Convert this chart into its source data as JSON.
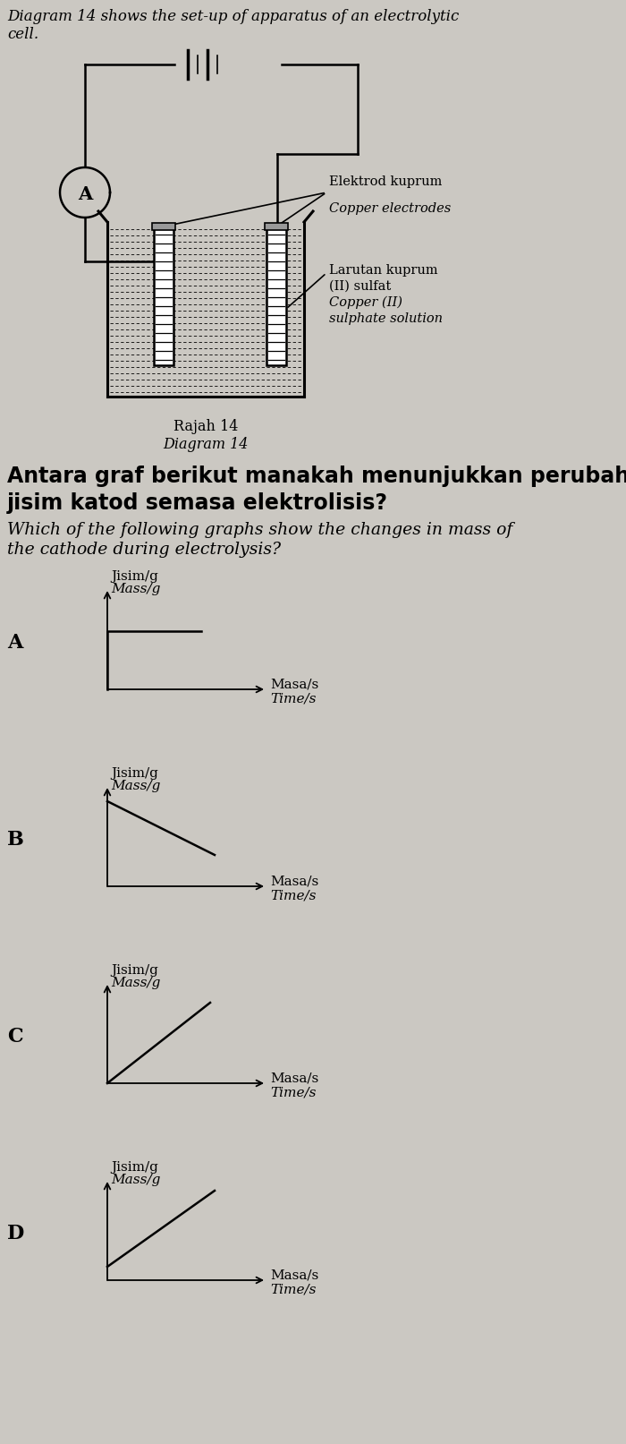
{
  "bg_color": "#cbc8c2",
  "text_color": "#1a1a1a",
  "title_line1": "Diagram 14 shows the set-up of apparatus of an electrolytic",
  "title_line2": "cell.",
  "rajah_label": "Rajah 14",
  "diagram_label": "Diagram 14",
  "question_malay_1": "Antara graf berikut manakah menunjukkan perubahan",
  "question_malay_2": "jisim katod semasa elektrolisis?",
  "question_english_1": "Which of the following graphs show the changes in mass of",
  "question_english_2": "the cathode during electrolysis?",
  "options": [
    "A",
    "B",
    "C",
    "D"
  ],
  "ylabel_malay": "Jisim/g",
  "ylabel_english": "Mass/g",
  "xlabel_malay": "Masa/s",
  "xlabel_english": "Time/s",
  "label_elektrod_malay": "Elektrod kuprum",
  "label_elektrod_english": "Copper electrodes",
  "label_larutan_1": "Larutan kuprum",
  "label_larutan_2": "(II) sulfat",
  "label_larutan_3": "Copper (II)",
  "label_larutan_4": "sulphate solution",
  "ammeter_label": "A"
}
